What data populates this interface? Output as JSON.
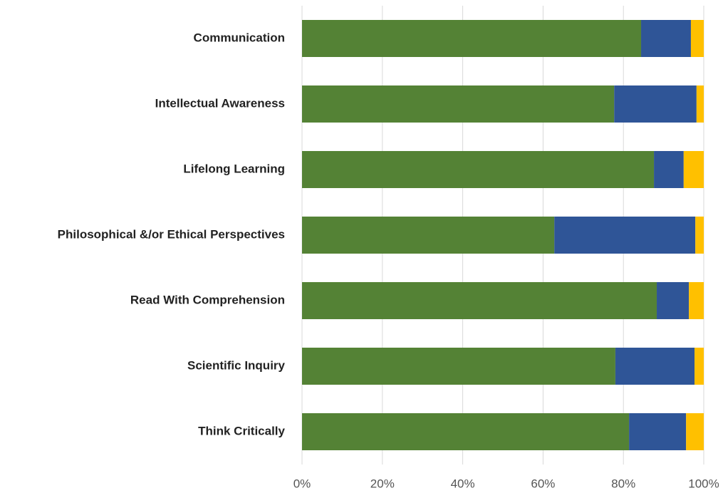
{
  "chart_data": {
    "type": "stacked_bar_horizontal",
    "categories": [
      "Communication",
      "Intellectual Awareness",
      "Lifelong Learning",
      "Philosophical &/or Ethical Perspectives",
      "Read With Comprehension",
      "Scientific Inquiry",
      "Think Critically"
    ],
    "series": [
      {
        "color": "#548235",
        "values": [
          84.4,
          77.7,
          87.6,
          62.8,
          88.3,
          78.0,
          81.4
        ]
      },
      {
        "color": "#2f5597",
        "values": [
          12.4,
          20.5,
          7.4,
          35.1,
          8.0,
          19.7,
          14.2
        ]
      },
      {
        "color": "#ffc000",
        "values": [
          3.2,
          1.8,
          5.0,
          2.1,
          3.7,
          2.3,
          4.4
        ]
      }
    ],
    "xlim": [
      0,
      100
    ],
    "xticks": [
      {
        "value": 0,
        "label": "0%"
      },
      {
        "value": 20,
        "label": "20%"
      },
      {
        "value": 40,
        "label": "40%"
      },
      {
        "value": 60,
        "label": "60%"
      },
      {
        "value": 80,
        "label": "80%"
      },
      {
        "value": 100,
        "label": "100%"
      }
    ],
    "grid": true
  }
}
